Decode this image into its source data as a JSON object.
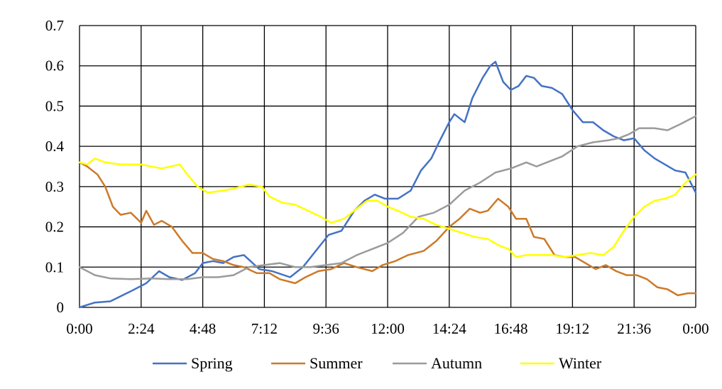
{
  "chart_data": {
    "type": "line",
    "title": "",
    "xlabel": "",
    "ylabel": "",
    "x_ticks": [
      "0:00",
      "2:24",
      "4:48",
      "7:12",
      "9:36",
      "12:00",
      "14:24",
      "16:48",
      "19:12",
      "21:36",
      "0:00"
    ],
    "xlim": [
      0,
      24
    ],
    "y_ticks": [
      "0",
      "0.1",
      "0.2",
      "0.3",
      "0.4",
      "0.5",
      "0.6",
      "0.7"
    ],
    "ylim": [
      0,
      0.7
    ],
    "grid": true,
    "legend": "bottom",
    "series": [
      {
        "name": "Spring",
        "color": "#4472c4",
        "points": [
          [
            0,
            0
          ],
          [
            0.6,
            0.012
          ],
          [
            1.2,
            0.015
          ],
          [
            2.0,
            0.04
          ],
          [
            2.6,
            0.06
          ],
          [
            3.1,
            0.09
          ],
          [
            3.5,
            0.075
          ],
          [
            4.0,
            0.068
          ],
          [
            4.5,
            0.085
          ],
          [
            4.8,
            0.11
          ],
          [
            5.2,
            0.115
          ],
          [
            5.6,
            0.11
          ],
          [
            6.0,
            0.125
          ],
          [
            6.4,
            0.13
          ],
          [
            7.0,
            0.095
          ],
          [
            7.5,
            0.09
          ],
          [
            8.2,
            0.075
          ],
          [
            8.7,
            0.1
          ],
          [
            9.2,
            0.14
          ],
          [
            9.7,
            0.18
          ],
          [
            10.2,
            0.19
          ],
          [
            10.7,
            0.24
          ],
          [
            11.1,
            0.265
          ],
          [
            11.5,
            0.28
          ],
          [
            11.9,
            0.27
          ],
          [
            12.4,
            0.27
          ],
          [
            12.9,
            0.29
          ],
          [
            13.3,
            0.34
          ],
          [
            13.7,
            0.37
          ],
          [
            14.0,
            0.41
          ],
          [
            14.4,
            0.46
          ],
          [
            14.6,
            0.48
          ],
          [
            15.0,
            0.46
          ],
          [
            15.3,
            0.52
          ],
          [
            15.7,
            0.57
          ],
          [
            16.0,
            0.6
          ],
          [
            16.2,
            0.61
          ],
          [
            16.5,
            0.56
          ],
          [
            16.8,
            0.54
          ],
          [
            17.1,
            0.55
          ],
          [
            17.4,
            0.575
          ],
          [
            17.7,
            0.57
          ],
          [
            18.0,
            0.55
          ],
          [
            18.4,
            0.545
          ],
          [
            18.8,
            0.53
          ],
          [
            19.2,
            0.49
          ],
          [
            19.6,
            0.46
          ],
          [
            20.0,
            0.46
          ],
          [
            20.4,
            0.44
          ],
          [
            20.8,
            0.425
          ],
          [
            21.2,
            0.415
          ],
          [
            21.6,
            0.42
          ],
          [
            22.0,
            0.39
          ],
          [
            22.4,
            0.37
          ],
          [
            22.8,
            0.355
          ],
          [
            23.2,
            0.34
          ],
          [
            23.6,
            0.335
          ],
          [
            24.0,
            0.285
          ]
        ]
      },
      {
        "name": "Summer",
        "color": "#cc7a28",
        "points": [
          [
            0,
            0.36
          ],
          [
            0.3,
            0.35
          ],
          [
            0.7,
            0.33
          ],
          [
            1.0,
            0.3
          ],
          [
            1.3,
            0.25
          ],
          [
            1.6,
            0.23
          ],
          [
            2.0,
            0.235
          ],
          [
            2.4,
            0.21
          ],
          [
            2.6,
            0.24
          ],
          [
            2.9,
            0.205
          ],
          [
            3.2,
            0.215
          ],
          [
            3.6,
            0.2
          ],
          [
            4.0,
            0.165
          ],
          [
            4.4,
            0.135
          ],
          [
            4.8,
            0.135
          ],
          [
            5.2,
            0.12
          ],
          [
            5.6,
            0.115
          ],
          [
            6.0,
            0.105
          ],
          [
            6.4,
            0.1
          ],
          [
            6.9,
            0.085
          ],
          [
            7.4,
            0.085
          ],
          [
            7.8,
            0.07
          ],
          [
            8.4,
            0.06
          ],
          [
            8.8,
            0.075
          ],
          [
            9.3,
            0.09
          ],
          [
            9.8,
            0.095
          ],
          [
            10.3,
            0.11
          ],
          [
            10.8,
            0.1
          ],
          [
            11.4,
            0.09
          ],
          [
            11.8,
            0.105
          ],
          [
            12.3,
            0.115
          ],
          [
            12.8,
            0.13
          ],
          [
            13.4,
            0.14
          ],
          [
            13.9,
            0.165
          ],
          [
            14.4,
            0.2
          ],
          [
            14.8,
            0.22
          ],
          [
            15.2,
            0.245
          ],
          [
            15.6,
            0.235
          ],
          [
            15.9,
            0.24
          ],
          [
            16.3,
            0.27
          ],
          [
            16.7,
            0.25
          ],
          [
            17.0,
            0.22
          ],
          [
            17.4,
            0.22
          ],
          [
            17.7,
            0.175
          ],
          [
            18.1,
            0.17
          ],
          [
            18.5,
            0.13
          ],
          [
            18.9,
            0.125
          ],
          [
            19.3,
            0.125
          ],
          [
            19.7,
            0.11
          ],
          [
            20.1,
            0.095
          ],
          [
            20.5,
            0.105
          ],
          [
            20.9,
            0.09
          ],
          [
            21.3,
            0.08
          ],
          [
            21.7,
            0.08
          ],
          [
            22.1,
            0.07
          ],
          [
            22.5,
            0.05
          ],
          [
            22.9,
            0.045
          ],
          [
            23.3,
            0.03
          ],
          [
            23.7,
            0.035
          ],
          [
            24.0,
            0.035
          ]
        ]
      },
      {
        "name": "Autumn",
        "color": "#9b9b9b",
        "points": [
          [
            0,
            0.1
          ],
          [
            0.6,
            0.08
          ],
          [
            1.2,
            0.072
          ],
          [
            2.0,
            0.07
          ],
          [
            2.8,
            0.072
          ],
          [
            3.5,
            0.07
          ],
          [
            4.2,
            0.07
          ],
          [
            4.8,
            0.075
          ],
          [
            5.4,
            0.075
          ],
          [
            6.0,
            0.08
          ],
          [
            6.6,
            0.1
          ],
          [
            7.2,
            0.105
          ],
          [
            7.8,
            0.11
          ],
          [
            8.4,
            0.1
          ],
          [
            9.0,
            0.1
          ],
          [
            9.6,
            0.105
          ],
          [
            10.2,
            0.11
          ],
          [
            10.8,
            0.13
          ],
          [
            11.4,
            0.145
          ],
          [
            12.0,
            0.16
          ],
          [
            12.6,
            0.185
          ],
          [
            13.2,
            0.225
          ],
          [
            13.8,
            0.235
          ],
          [
            14.4,
            0.255
          ],
          [
            15.0,
            0.29
          ],
          [
            15.6,
            0.31
          ],
          [
            16.2,
            0.335
          ],
          [
            16.8,
            0.345
          ],
          [
            17.4,
            0.36
          ],
          [
            17.8,
            0.35
          ],
          [
            18.2,
            0.36
          ],
          [
            18.8,
            0.375
          ],
          [
            19.4,
            0.4
          ],
          [
            20.0,
            0.41
          ],
          [
            20.6,
            0.415
          ],
          [
            21.0,
            0.42
          ],
          [
            21.4,
            0.43
          ],
          [
            21.8,
            0.445
          ],
          [
            22.4,
            0.445
          ],
          [
            22.9,
            0.44
          ],
          [
            23.4,
            0.455
          ],
          [
            24.0,
            0.475
          ]
        ]
      },
      {
        "name": "Winter",
        "color": "#ffff00",
        "points": [
          [
            0,
            0.36
          ],
          [
            0.3,
            0.355
          ],
          [
            0.6,
            0.37
          ],
          [
            1.0,
            0.36
          ],
          [
            1.6,
            0.355
          ],
          [
            2.4,
            0.355
          ],
          [
            3.2,
            0.345
          ],
          [
            3.9,
            0.355
          ],
          [
            4.2,
            0.33
          ],
          [
            4.6,
            0.3
          ],
          [
            5.0,
            0.285
          ],
          [
            5.6,
            0.29
          ],
          [
            6.0,
            0.295
          ],
          [
            6.6,
            0.305
          ],
          [
            7.1,
            0.3
          ],
          [
            7.4,
            0.275
          ],
          [
            7.9,
            0.26
          ],
          [
            8.4,
            0.255
          ],
          [
            8.9,
            0.24
          ],
          [
            9.4,
            0.225
          ],
          [
            9.8,
            0.21
          ],
          [
            10.3,
            0.22
          ],
          [
            10.8,
            0.245
          ],
          [
            11.2,
            0.265
          ],
          [
            11.6,
            0.265
          ],
          [
            12.0,
            0.25
          ],
          [
            12.4,
            0.24
          ],
          [
            12.9,
            0.225
          ],
          [
            13.4,
            0.22
          ],
          [
            13.9,
            0.205
          ],
          [
            14.4,
            0.195
          ],
          [
            14.9,
            0.185
          ],
          [
            15.4,
            0.175
          ],
          [
            15.9,
            0.17
          ],
          [
            16.3,
            0.155
          ],
          [
            16.7,
            0.145
          ],
          [
            17.0,
            0.125
          ],
          [
            17.4,
            0.13
          ],
          [
            17.9,
            0.13
          ],
          [
            18.4,
            0.13
          ],
          [
            18.9,
            0.125
          ],
          [
            19.4,
            0.13
          ],
          [
            19.9,
            0.135
          ],
          [
            20.4,
            0.13
          ],
          [
            20.8,
            0.15
          ],
          [
            21.2,
            0.19
          ],
          [
            21.6,
            0.225
          ],
          [
            22.0,
            0.25
          ],
          [
            22.4,
            0.265
          ],
          [
            22.8,
            0.27
          ],
          [
            23.2,
            0.28
          ],
          [
            23.6,
            0.31
          ],
          [
            24.0,
            0.33
          ]
        ]
      }
    ]
  }
}
